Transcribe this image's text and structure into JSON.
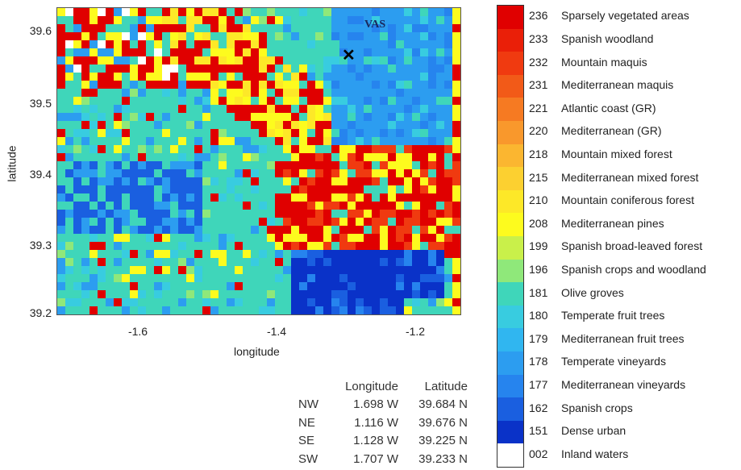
{
  "map": {
    "x_label": "longitude",
    "y_label": "latitude",
    "x_ticks": [
      "-1.6",
      "-1.4",
      "-1.2"
    ],
    "y_ticks": [
      "39.6",
      "39.5",
      "39.4",
      "39.3",
      "39.2"
    ],
    "station_label": "VAS",
    "station_marker": "✕",
    "palette": {
      "236": "#e00000",
      "233": "#ea1f08",
      "232": "#f03a10",
      "231": "#f25a18",
      "221": "#f67a22",
      "220": "#f9982c",
      "218": "#fbb630",
      "215": "#fcd030",
      "210": "#fde828",
      "208": "#fdfb1e",
      "199": "#c9f04a",
      "196": "#8fe87a",
      "181": "#3fd6ba",
      "180": "#38cce0",
      "179": "#30b6f0",
      "178": "#2c9df0",
      "177": "#2684ee",
      "162": "#1a5fe0",
      "151": "#0a32c8",
      "002": "#ffffff"
    }
  },
  "corners": {
    "headers": [
      "",
      "Longitude",
      "Latitude"
    ],
    "rows": [
      [
        "NW",
        "1.698 W",
        "39.684 N"
      ],
      [
        "NE",
        "1.116 W",
        "39.676 N"
      ],
      [
        "SE",
        "1.128 W",
        "39.225 N"
      ],
      [
        "SW",
        "1.707 W",
        "39.233 N"
      ]
    ]
  },
  "legend": [
    {
      "code": "236",
      "label": "Sparsely vegetated areas",
      "color": "#e00000"
    },
    {
      "code": "233",
      "label": "Spanish woodland",
      "color": "#ea1f08"
    },
    {
      "code": "232",
      "label": "Mountain maquis",
      "color": "#f03a10"
    },
    {
      "code": "231",
      "label": "Mediterranean maquis",
      "color": "#f25a18"
    },
    {
      "code": "221",
      "label": "Atlantic coast (GR)",
      "color": "#f67a22"
    },
    {
      "code": "220",
      "label": "Mediterranean (GR)",
      "color": "#f9982c"
    },
    {
      "code": "218",
      "label": "Mountain mixed forest",
      "color": "#fbb630"
    },
    {
      "code": "215",
      "label": "Mediterranean mixed forest",
      "color": "#fcd030"
    },
    {
      "code": "210",
      "label": "Mountain coniferous forest",
      "color": "#fde828"
    },
    {
      "code": "208",
      "label": "Mediterranean pines",
      "color": "#fdfb1e"
    },
    {
      "code": "199",
      "label": "Spanish broad-leaved forest",
      "color": "#c9f04a"
    },
    {
      "code": "196",
      "label": "Spanish crops and woodland",
      "color": "#8fe87a"
    },
    {
      "code": "181",
      "label": "Olive groves",
      "color": "#3fd6ba"
    },
    {
      "code": "180",
      "label": "Temperate fruit trees",
      "color": "#38cce0"
    },
    {
      "code": "179",
      "label": "Mediterranean fruit trees",
      "color": "#30b6f0"
    },
    {
      "code": "178",
      "label": "Temperate vineyards",
      "color": "#2c9df0"
    },
    {
      "code": "177",
      "label": "Mediterranean vineyards",
      "color": "#2684ee"
    },
    {
      "code": "162",
      "label": "Spanish crops",
      "color": "#1a5fe0"
    },
    {
      "code": "151",
      "label": "Dense urban",
      "color": "#0a32c8"
    },
    {
      "code": "002",
      "label": "Inland waters",
      "color": "#ffffff"
    }
  ]
}
